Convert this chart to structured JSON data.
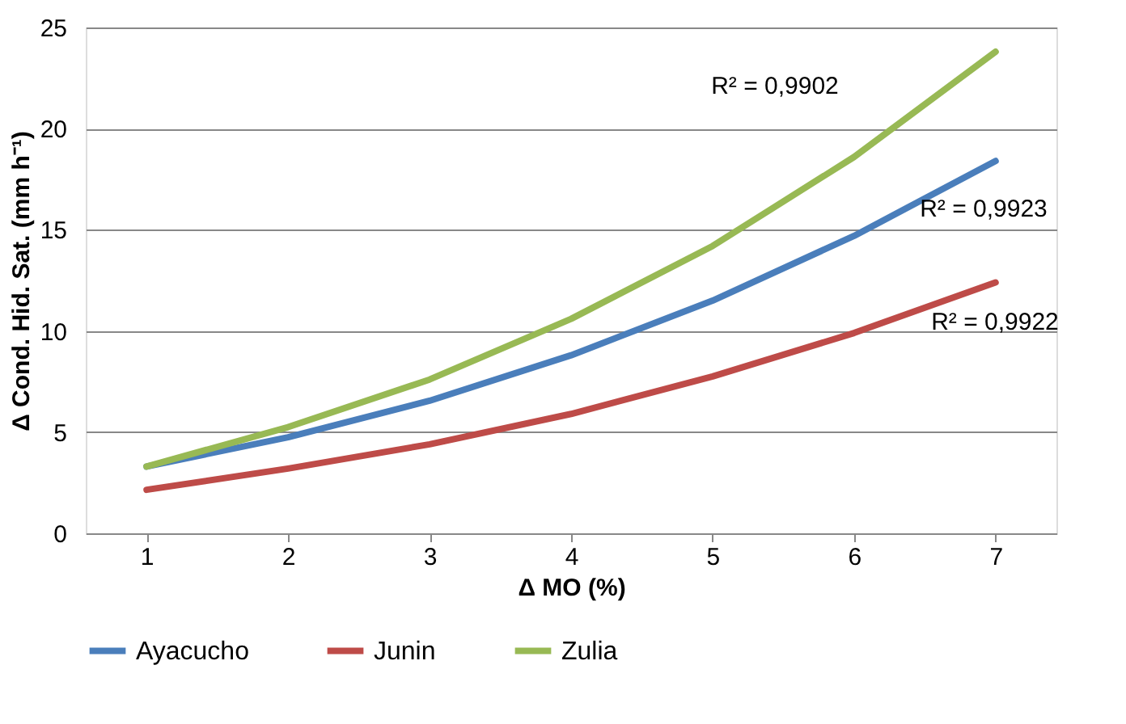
{
  "chart_data": {
    "type": "line",
    "xlabel": "Δ MO (%)",
    "ylabel": "Δ Cond. Hid. Sat. (mm h⁻¹)",
    "categories": [
      "1",
      "2",
      "3",
      "4",
      "5",
      "6",
      "7"
    ],
    "series": [
      {
        "name": "Ayacucho",
        "color": "#4a7ebb",
        "values": [
          3.3,
          4.75,
          6.55,
          8.8,
          11.5,
          14.7,
          18.4
        ]
      },
      {
        "name": "Junin",
        "color": "#be4b48",
        "values": [
          2.15,
          3.2,
          4.4,
          5.9,
          7.75,
          9.9,
          12.4
        ]
      },
      {
        "name": "Zulia",
        "color": "#98b954",
        "values": [
          3.3,
          5.25,
          7.6,
          10.6,
          14.2,
          18.6,
          23.8
        ]
      }
    ],
    "annotations": [
      "R² = 0,9902",
      "R² = 0,9923",
      "R² = 0,9922"
    ],
    "ylim": [
      0,
      25
    ],
    "yticks": [
      0,
      5,
      10,
      15,
      20,
      25
    ],
    "grid": "y",
    "legend": "bottom",
    "marker": "none",
    "line_style": "solid"
  }
}
